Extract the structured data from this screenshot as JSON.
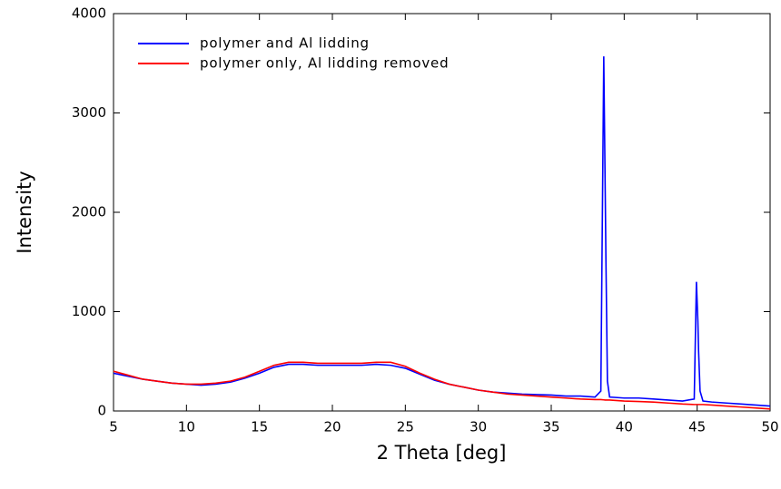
{
  "chart_data": {
    "type": "line",
    "xlabel": "2 Theta [deg]",
    "ylabel": "Intensity",
    "x": [
      5,
      6,
      7,
      8,
      9,
      10,
      11,
      12,
      13,
      14,
      15,
      16,
      17,
      18,
      19,
      20,
      21,
      22,
      23,
      24,
      25,
      26,
      27,
      28,
      29,
      30,
      31,
      32,
      33,
      34,
      35,
      36,
      37,
      38,
      38.4,
      38.6,
      38.7,
      38.75,
      38.85,
      39,
      40,
      41,
      42,
      43,
      44,
      44.8,
      44.95,
      45.05,
      45.1,
      45.2,
      45.4,
      46,
      47,
      48,
      49,
      50
    ],
    "series": [
      {
        "name": "polymer and Al lidding",
        "color": "#0000ff",
        "values": [
          380,
          350,
          320,
          300,
          280,
          270,
          260,
          270,
          290,
          330,
          380,
          440,
          470,
          470,
          460,
          460,
          460,
          460,
          470,
          460,
          430,
          370,
          310,
          270,
          240,
          210,
          190,
          180,
          170,
          165,
          160,
          150,
          150,
          140,
          200,
          3570,
          2200,
          1500,
          300,
          140,
          130,
          130,
          120,
          110,
          100,
          120,
          1300,
          900,
          600,
          200,
          100,
          90,
          80,
          70,
          60,
          50
        ]
      },
      {
        "name": "polymer only, Al lidding removed",
        "color": "#ff0000",
        "values": [
          400,
          360,
          320,
          300,
          280,
          270,
          270,
          280,
          300,
          340,
          400,
          460,
          490,
          490,
          480,
          480,
          480,
          480,
          490,
          490,
          450,
          380,
          320,
          270,
          240,
          210,
          190,
          170,
          160,
          150,
          140,
          130,
          120,
          115,
          115,
          112,
          110,
          110,
          110,
          110,
          100,
          95,
          90,
          80,
          70,
          65,
          65,
          65,
          65,
          65,
          65,
          60,
          50,
          40,
          30,
          20
        ]
      }
    ],
    "xlim": [
      5,
      50
    ],
    "xticks": [
      5,
      10,
      15,
      20,
      25,
      30,
      35,
      40,
      45,
      50
    ],
    "ylim": [
      0,
      4000
    ],
    "yticks": [
      0,
      1000,
      2000,
      3000,
      4000
    ],
    "legend": "upper left"
  }
}
